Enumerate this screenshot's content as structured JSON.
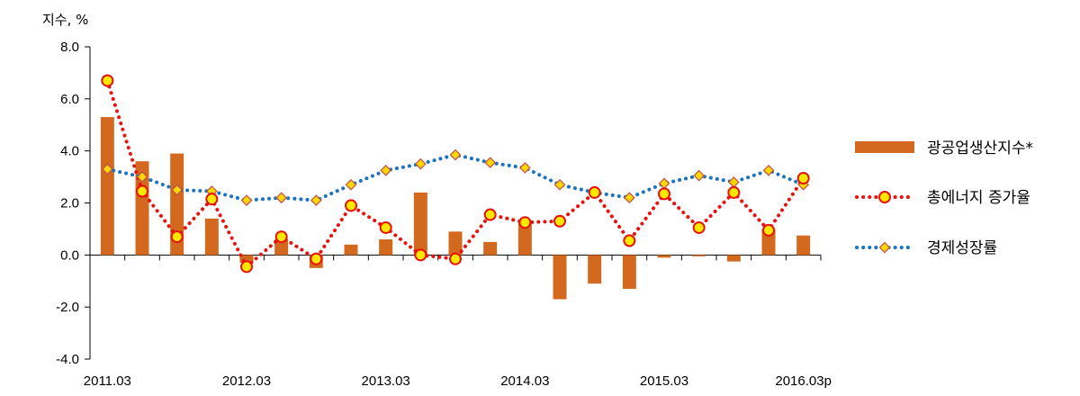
{
  "chart_data": {
    "type": "bar",
    "y_unit": "지수, %",
    "ylim": [
      -4.0,
      8.0
    ],
    "y_ticks": [
      "8.0",
      "6.0",
      "4.0",
      "2.0",
      "0.0",
      "-2.0",
      "-4.0"
    ],
    "y_tick_values": [
      8,
      6,
      4,
      2,
      0,
      -2,
      -4
    ],
    "x_labels": [
      "2011.03",
      "2012.03",
      "2013.03",
      "2014.03",
      "2015.03",
      "2016.03p"
    ],
    "x_label_indices": [
      0,
      4,
      8,
      12,
      16,
      20
    ],
    "n_periods": 21,
    "grid": false,
    "legend_position": "right",
    "series": [
      {
        "name": "광공업생산지수*",
        "type": "bar",
        "color": "#D2691E",
        "values": [
          5.3,
          3.6,
          3.9,
          1.4,
          -0.3,
          0.6,
          -0.5,
          0.4,
          0.6,
          2.4,
          0.9,
          0.5,
          1.3,
          -1.7,
          -1.1,
          -1.3,
          -0.1,
          -0.05,
          -0.25,
          1.0,
          0.75
        ]
      },
      {
        "name": "총에너지 증가율",
        "type": "line",
        "color": "#E8120C",
        "marker": "circle",
        "marker_fill": "#FFE800",
        "values": [
          6.7,
          2.45,
          0.7,
          2.15,
          -0.45,
          0.7,
          -0.15,
          1.9,
          1.05,
          0.0,
          -0.15,
          1.55,
          1.25,
          1.3,
          2.4,
          0.55,
          2.35,
          1.05,
          2.4,
          0.95,
          2.95
        ]
      },
      {
        "name": "경제성장률",
        "type": "line",
        "color": "#1E73BE",
        "marker": "diamond",
        "marker_fill": "#FFD700",
        "values": [
          3.3,
          3.0,
          2.5,
          2.45,
          2.1,
          2.2,
          2.1,
          2.7,
          3.25,
          3.5,
          3.85,
          3.55,
          3.35,
          2.7,
          2.4,
          2.2,
          2.75,
          3.05,
          2.8,
          3.25,
          2.7
        ]
      }
    ]
  }
}
